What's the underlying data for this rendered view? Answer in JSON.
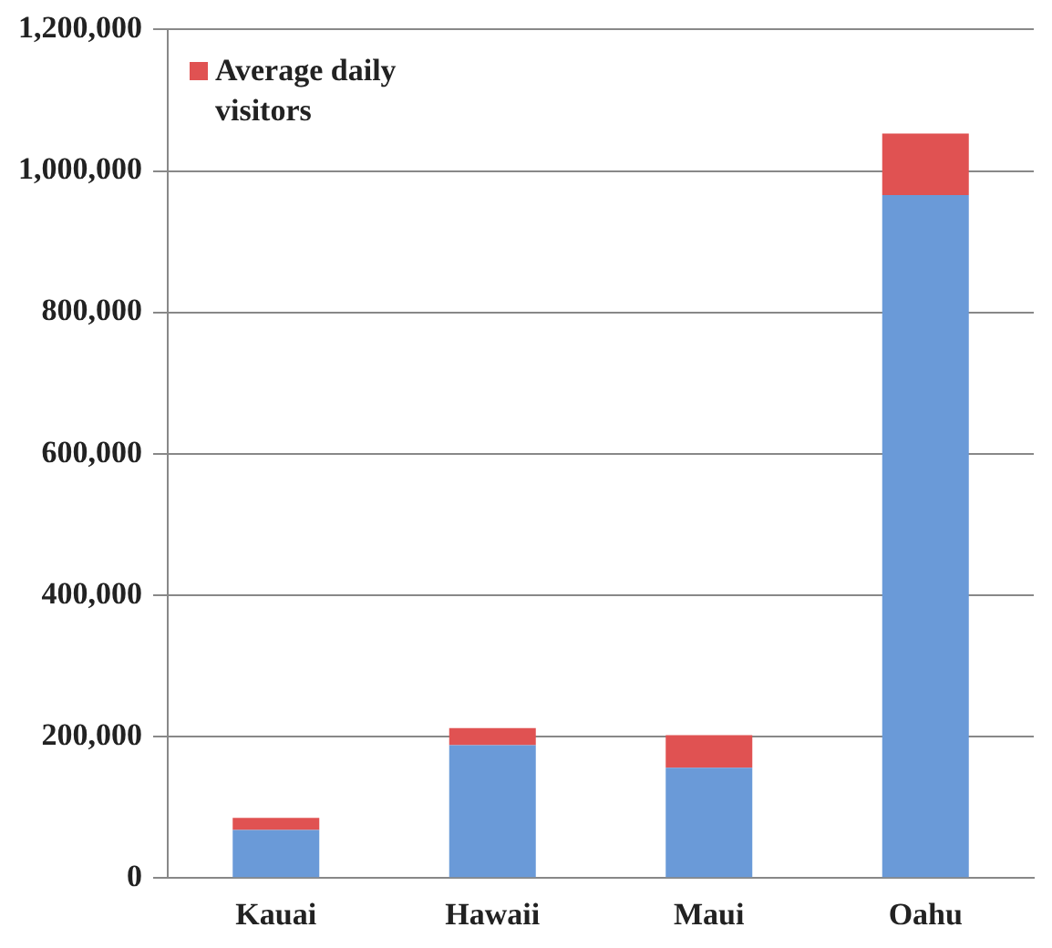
{
  "chart_data": {
    "type": "bar",
    "stacked": true,
    "categories": [
      "Kauai",
      "Hawaii",
      "Maui",
      "Oahu"
    ],
    "series": [
      {
        "color": "#6a9ad8",
        "values": [
          68000,
          188000,
          156000,
          966000
        ]
      },
      {
        "name": "Average daily visitors",
        "color": "#e05252",
        "values": [
          17000,
          24000,
          46000,
          87000
        ]
      }
    ],
    "ylim": [
      0,
      1200000
    ],
    "yticks": [
      {
        "value": 0,
        "label": "0"
      },
      {
        "value": 200000,
        "label": "200,000"
      },
      {
        "value": 400000,
        "label": "400,000"
      },
      {
        "value": 600000,
        "label": "600,000"
      },
      {
        "value": 800000,
        "label": "800,000"
      },
      {
        "value": 1000000,
        "label": "1,000,000"
      },
      {
        "value": 1200000,
        "label": "1,200,000"
      }
    ],
    "grid": "y",
    "legend": "top left"
  }
}
